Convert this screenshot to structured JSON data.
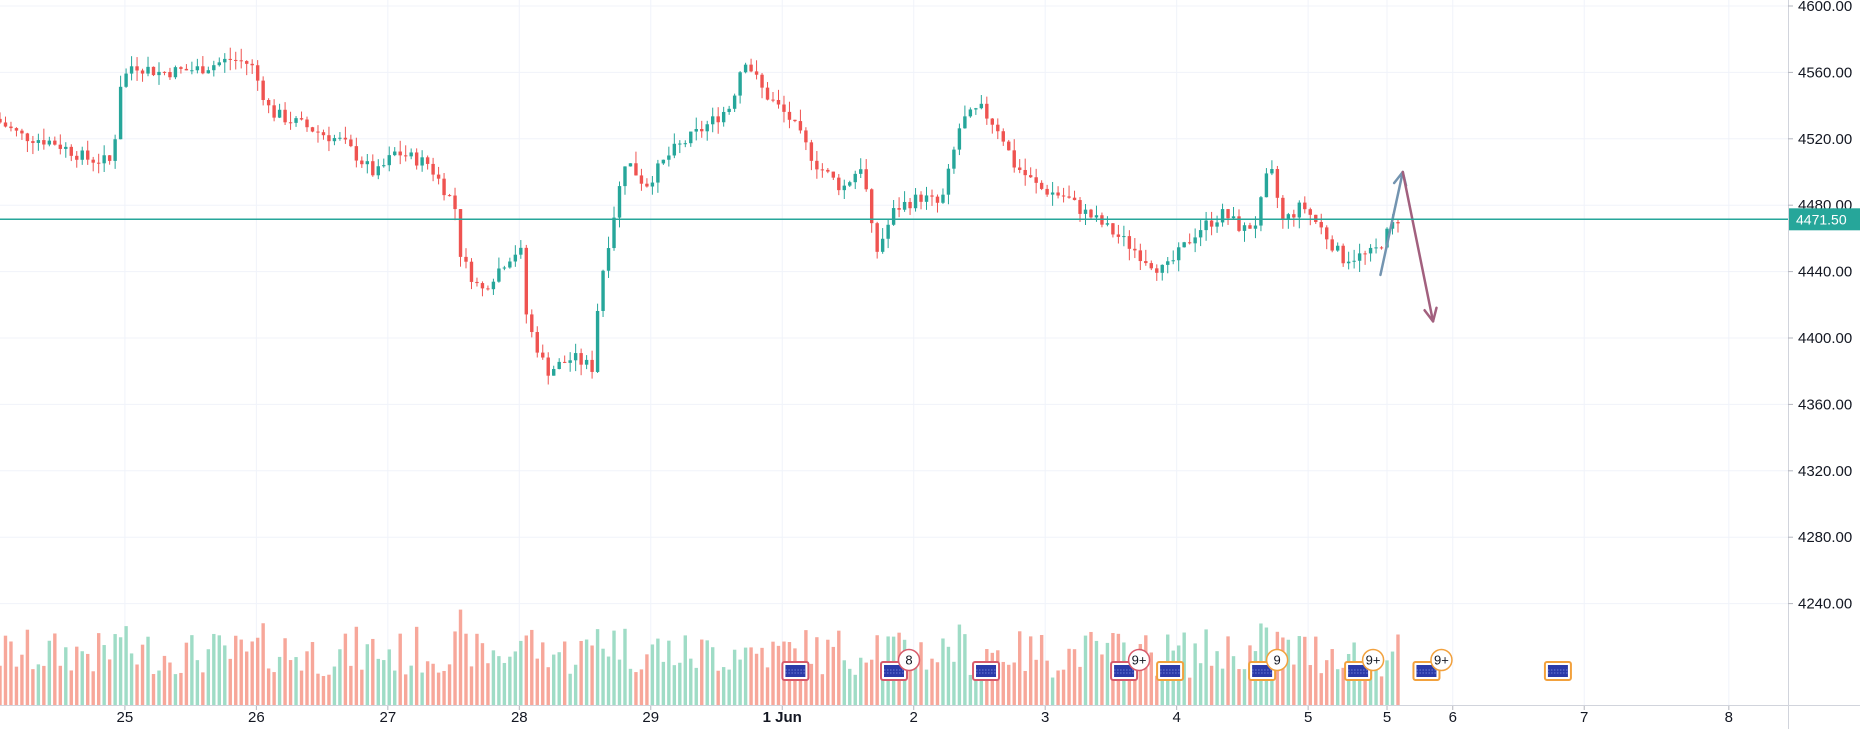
{
  "chart_data": {
    "type": "candlestick",
    "title": "",
    "instrument": "",
    "y_axis": {
      "position": "right",
      "ylim": [
        4200,
        4600
      ],
      "ticks": [
        "4600.00",
        "4560.00",
        "4520.00",
        "4480.00",
        "4440.00",
        "4400.00",
        "4360.00",
        "4320.00",
        "4280.00",
        "4240.00"
      ],
      "grid": true
    },
    "x_axis": {
      "ticks": [
        {
          "label": "25",
          "day": 1.0
        },
        {
          "label": "26",
          "day": 2.0
        },
        {
          "label": "27",
          "day": 3.0
        },
        {
          "label": "28",
          "day": 4.0
        },
        {
          "label": "29",
          "day": 5.0
        },
        {
          "label": "1 Jun",
          "day": 6.0,
          "bold": true
        },
        {
          "label": "2",
          "day": 7.0
        },
        {
          "label": "3",
          "day": 8.0
        },
        {
          "label": "4",
          "day": 9.0
        },
        {
          "label": "5",
          "day": 10.0
        },
        {
          "label": "5",
          "day": 10.6
        },
        {
          "label": "6",
          "day": 11.1
        },
        {
          "label": "7",
          "day": 12.1
        },
        {
          "label": "8",
          "day": 13.2
        }
      ],
      "grid": true,
      "range_days": [
        0.05,
        13.65
      ]
    },
    "current_price": {
      "value": 4471.5,
      "label": "4471.50",
      "color": "#26a69a"
    },
    "colors": {
      "up": "#26a69a",
      "down": "#ef5350",
      "volume_up": "#9fdcc6",
      "volume_down": "#f7a79a",
      "grid": "#f0f3fa",
      "axis": "#d1d4dc",
      "text": "#131722",
      "arrow_up": "#7394b0",
      "arrow_down": "#a2607e"
    },
    "price_path": [
      [
        0.05,
        4532
      ],
      [
        0.25,
        4522
      ],
      [
        0.5,
        4518
      ],
      [
        0.75,
        4508
      ],
      [
        0.95,
        4506
      ],
      [
        1.0,
        4552
      ],
      [
        1.1,
        4565
      ],
      [
        1.3,
        4560
      ],
      [
        1.6,
        4562
      ],
      [
        1.85,
        4568
      ],
      [
        2.0,
        4565
      ],
      [
        2.15,
        4536
      ],
      [
        2.4,
        4528
      ],
      [
        2.7,
        4518
      ],
      [
        2.95,
        4498
      ],
      [
        3.1,
        4512
      ],
      [
        3.35,
        4505
      ],
      [
        3.55,
        4480
      ],
      [
        3.6,
        4448
      ],
      [
        3.75,
        4428
      ],
      [
        3.95,
        4448
      ],
      [
        4.05,
        4454
      ],
      [
        4.1,
        4410
      ],
      [
        4.25,
        4380
      ],
      [
        4.45,
        4388
      ],
      [
        4.6,
        4382
      ],
      [
        4.65,
        4430
      ],
      [
        4.75,
        4470
      ],
      [
        4.85,
        4508
      ],
      [
        5.0,
        4492
      ],
      [
        5.2,
        4512
      ],
      [
        5.5,
        4530
      ],
      [
        5.65,
        4540
      ],
      [
        5.75,
        4570
      ],
      [
        5.9,
        4548
      ],
      [
        6.1,
        4532
      ],
      [
        6.3,
        4505
      ],
      [
        6.5,
        4490
      ],
      [
        6.65,
        4505
      ],
      [
        6.75,
        4450
      ],
      [
        6.9,
        4478
      ],
      [
        7.1,
        4485
      ],
      [
        7.25,
        4480
      ],
      [
        7.4,
        4530
      ],
      [
        7.55,
        4538
      ],
      [
        7.7,
        4525
      ],
      [
        7.8,
        4505
      ],
      [
        8.0,
        4490
      ],
      [
        8.2,
        4485
      ],
      [
        8.3,
        4478
      ],
      [
        8.45,
        4470
      ],
      [
        8.65,
        4458
      ],
      [
        8.8,
        4448
      ],
      [
        8.95,
        4440
      ],
      [
        9.05,
        4450
      ],
      [
        9.2,
        4465
      ],
      [
        9.4,
        4475
      ],
      [
        9.55,
        4465
      ],
      [
        9.65,
        4470
      ],
      [
        9.75,
        4504
      ],
      [
        9.85,
        4470
      ],
      [
        10.0,
        4480
      ],
      [
        10.15,
        4465
      ],
      [
        10.3,
        4448
      ],
      [
        10.5,
        4450
      ],
      [
        10.55,
        4452
      ],
      [
        10.72,
        4472
      ]
    ],
    "projection_arrows": [
      {
        "from": [
          10.55,
          4438
        ],
        "to": [
          10.72,
          4500
        ],
        "color": "#7394b0"
      },
      {
        "from": [
          10.72,
          4500
        ],
        "to": [
          10.95,
          4410
        ],
        "color": "#a2607e"
      }
    ],
    "volume": {
      "max": 150,
      "description": "volume histogram along the bottom, colored by candle direction"
    },
    "event_markers": [
      {
        "day": 6.1,
        "count": ""
      },
      {
        "day": 6.85,
        "count": "8"
      },
      {
        "day": 7.55,
        "count": ""
      },
      {
        "day": 8.6,
        "count": "9+"
      },
      {
        "day": 8.95,
        "count": ""
      },
      {
        "day": 9.65,
        "count": "9"
      },
      {
        "day": 10.38,
        "count": "9+"
      },
      {
        "day": 10.9,
        "count": "9+"
      },
      {
        "day": 11.9,
        "count": ""
      }
    ]
  }
}
